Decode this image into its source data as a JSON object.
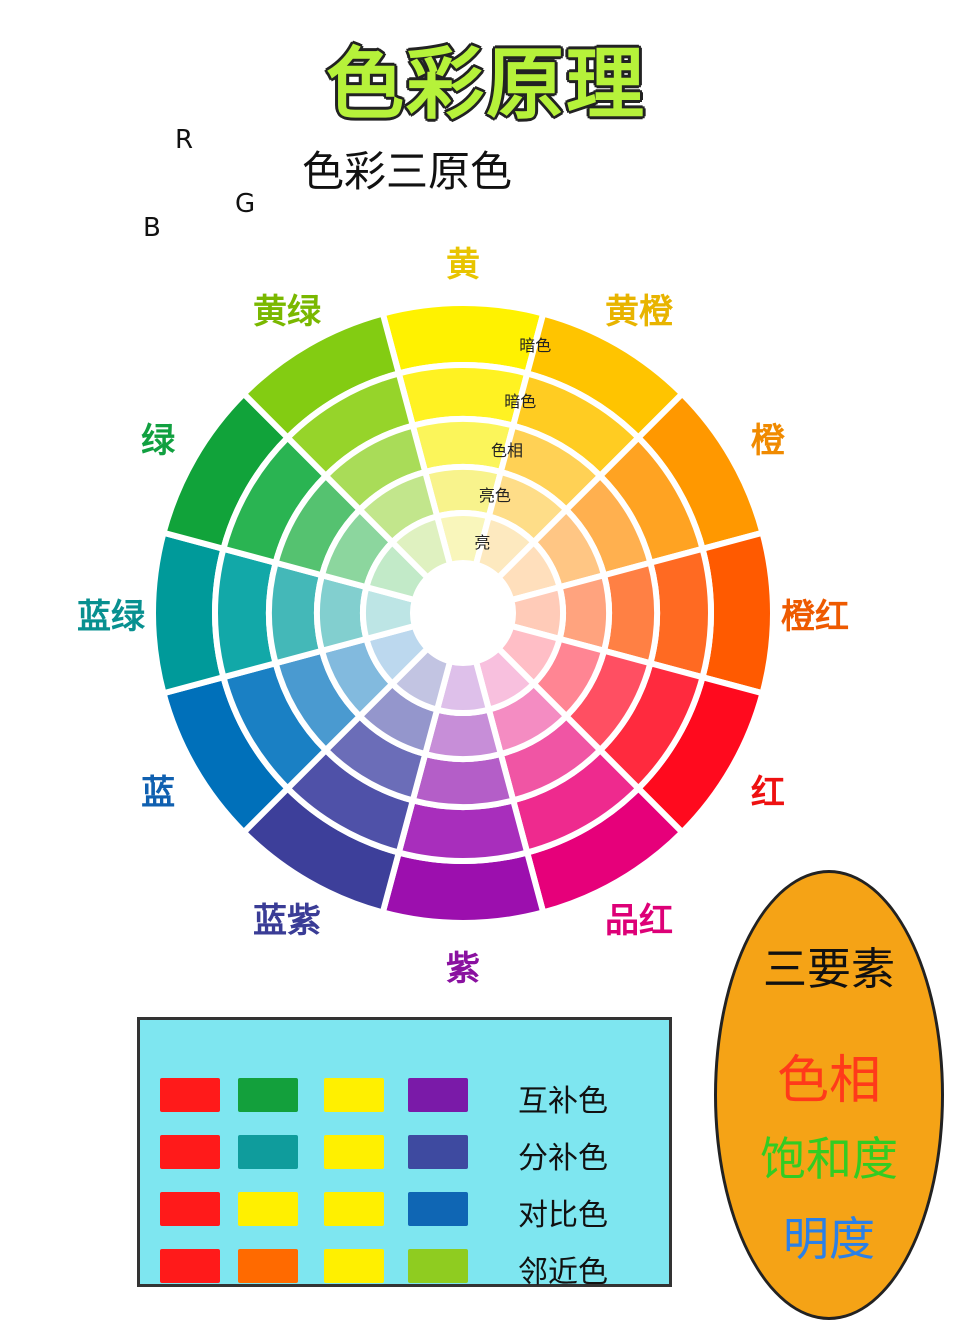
{
  "title": "色彩原理",
  "rgb": {
    "title": "色彩三原色",
    "circles": [
      {
        "letter": "R",
        "color": "#ff1010"
      },
      {
        "letter": "G",
        "color": "#10dd10"
      },
      {
        "letter": "B",
        "color": "#1010ee"
      }
    ]
  },
  "wheel": {
    "hues": [
      {
        "name": "黄",
        "colors": [
          "#fff200",
          "#fff222",
          "#fbf55a",
          "#f8f38c",
          "#f9f6bb"
        ],
        "label_color": "#e8c400"
      },
      {
        "name": "黄橙",
        "colors": [
          "#ffc400",
          "#ffcc22",
          "#ffd155",
          "#fedd88",
          "#fde9bf"
        ],
        "label_color": "#e8b400"
      },
      {
        "name": "橙",
        "colors": [
          "#ff9800",
          "#ffa322",
          "#ffb04f",
          "#ffc684",
          "#ffdfbc"
        ],
        "label_color": "#f08a00"
      },
      {
        "name": "橙红",
        "colors": [
          "#ff5a00",
          "#ff6a22",
          "#ff8044",
          "#ffa37e",
          "#ffcbb8"
        ],
        "label_color": "#ee5a00"
      },
      {
        "name": "红",
        "colors": [
          "#ff0a1e",
          "#ff2a3e",
          "#ff4f62",
          "#ff8593",
          "#ffbec6"
        ],
        "label_color": "#ee1111"
      },
      {
        "name": "品红",
        "colors": [
          "#e6007a",
          "#ee2a8e",
          "#f055a4",
          "#f48cc2",
          "#f8c0de"
        ],
        "label_color": "#dd0077"
      },
      {
        "name": "紫",
        "colors": [
          "#9c0fae",
          "#a82ebc",
          "#b45ec8",
          "#c78ed8",
          "#dec0ea"
        ],
        "label_color": "#8a11a0"
      },
      {
        "name": "蓝紫",
        "colors": [
          "#3d3f9a",
          "#4f51a8",
          "#6b6db8",
          "#9496cc",
          "#c2c4e2"
        ],
        "label_color": "#3a3c96"
      },
      {
        "name": "蓝",
        "colors": [
          "#0070ba",
          "#1a80c4",
          "#4a9ad0",
          "#82bade",
          "#bcd8ee"
        ],
        "label_color": "#1060b0"
      },
      {
        "name": "蓝绿",
        "colors": [
          "#009a9a",
          "#12a8a8",
          "#44b8b8",
          "#82cfcf",
          "#bde5e5"
        ],
        "label_color": "#089090"
      },
      {
        "name": "绿",
        "colors": [
          "#11a33a",
          "#2ab452",
          "#55c270",
          "#8cd69e",
          "#c2eac8"
        ],
        "label_color": "#11a040"
      },
      {
        "name": "黄绿",
        "colors": [
          "#83cc12",
          "#96d42a",
          "#a9dc58",
          "#c2e68c",
          "#dff1c0"
        ],
        "label_color": "#7ab800"
      }
    ],
    "levels": [
      "暗色",
      "暗色",
      "色相",
      "亮色",
      "亮"
    ]
  },
  "schemes": [
    {
      "name": "互补色",
      "swatches": [
        "#ff1a1a",
        "#13a03c",
        "#fff000",
        "#7a1aa8"
      ]
    },
    {
      "name": "分补色",
      "swatches": [
        "#ff1a1a",
        "#0f9c9c",
        "#fff000",
        "#3e4aa0"
      ]
    },
    {
      "name": "对比色",
      "swatches": [
        "#ff1a1a",
        "#fff000",
        "#fff000",
        "#0f66b4"
      ]
    },
    {
      "name": "邻近色",
      "swatches": [
        "#ff1a1a",
        "#ff6a00",
        "#fff000",
        "#8fcc20"
      ]
    }
  ],
  "elements": {
    "title": "三要素",
    "items": [
      {
        "label": "色相",
        "color": "#ff3a1a"
      },
      {
        "label": "饱和度",
        "color": "#33cc22"
      },
      {
        "label": "明度",
        "color": "#2a80e8"
      }
    ]
  }
}
